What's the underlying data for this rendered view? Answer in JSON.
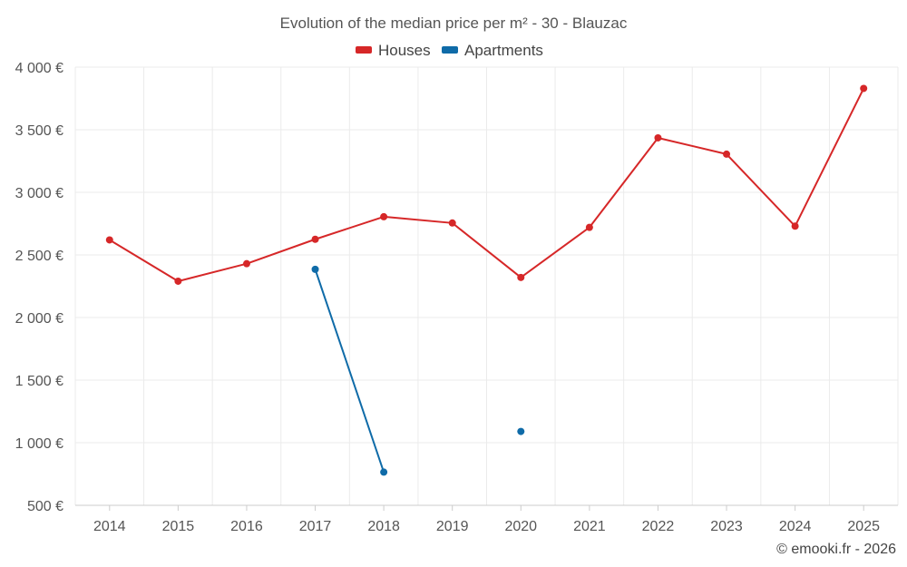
{
  "chart_data": {
    "type": "line",
    "title": "Evolution of the median price per m² - 30 - Blauzac",
    "categories": [
      "2014",
      "2015",
      "2016",
      "2017",
      "2018",
      "2019",
      "2020",
      "2021",
      "2022",
      "2023",
      "2024",
      "2025"
    ],
    "series": [
      {
        "name": "Houses",
        "color": "#d62728",
        "values": [
          2620,
          2290,
          2430,
          2625,
          2805,
          2755,
          2320,
          2720,
          3435,
          3305,
          2730,
          3830
        ]
      },
      {
        "name": "Apartments",
        "color": "#0f6ba8",
        "values": [
          null,
          null,
          null,
          2385,
          765,
          null,
          1090,
          null,
          null,
          null,
          null,
          null
        ]
      }
    ],
    "ylim": [
      500,
      4000
    ],
    "yticks": [
      500,
      1000,
      1500,
      2000,
      2500,
      3000,
      3500,
      4000
    ],
    "ytick_labels": [
      "500 €",
      "1 000 €",
      "1 500 €",
      "2 000 €",
      "2 500 €",
      "3 000 €",
      "3 500 €",
      "4 000 €"
    ],
    "xlabel": "",
    "ylabel": "",
    "grid": true,
    "legend": "top-center"
  },
  "credit": "© emooki.fr - 2026"
}
